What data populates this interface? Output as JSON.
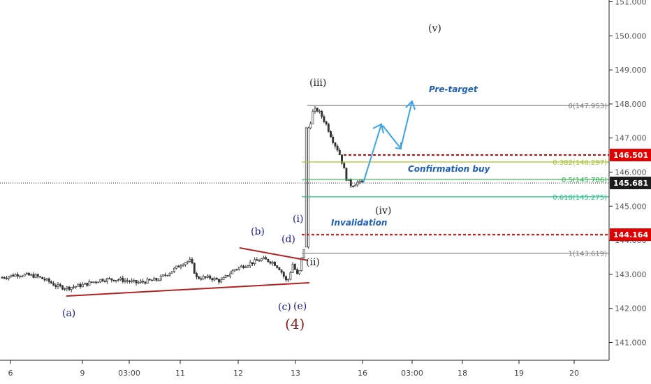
{
  "chart_data": {
    "type": "candlestick",
    "price_axis": {
      "range": [
        140.2,
        151.1
      ],
      "ticks": [
        "141.000",
        "142.000",
        "143.000",
        "144.000",
        "145.000",
        "146.000",
        "147.000",
        "148.000",
        "149.000",
        "150.000",
        "151.000"
      ]
    },
    "time_axis": {
      "labels": [
        "6",
        "9",
        "03:00",
        "11",
        "12",
        "13",
        "16",
        "03:00",
        "18",
        "19",
        "20"
      ]
    },
    "current_price": "145.681",
    "price_tags": [
      {
        "label": "146.501",
        "price": 146.501,
        "color": "#e00000"
      },
      {
        "label": "144.164",
        "price": 144.164,
        "color": "#e00000"
      }
    ],
    "fib_levels": [
      {
        "label": "0(147.953)",
        "price": 147.953,
        "color": "#7a7a7a"
      },
      {
        "label": "0.382(146.297)",
        "price": 146.297,
        "color": "#a6c227"
      },
      {
        "label": "0.5(145.786)",
        "price": 145.786,
        "color": "#2fae4a"
      },
      {
        "label": "0.618(145.275)",
        "price": 145.275,
        "color": "#1ec980"
      },
      {
        "label": "1(143.619)",
        "price": 143.619,
        "color": "#7a7a7a"
      }
    ],
    "wave_labels": [
      {
        "text": "(a)",
        "color": "#1a1a8c"
      },
      {
        "text": "(b)",
        "color": "#1a1a8c"
      },
      {
        "text": "(c)",
        "color": "#1a1a8c"
      },
      {
        "text": "(d)",
        "color": "#1a1a8c"
      },
      {
        "text": "(e)",
        "color": "#1a1a8c"
      },
      {
        "text": "(4)",
        "color": "#8b2020"
      },
      {
        "text": "(i)",
        "color": "#1a1a8c"
      },
      {
        "text": "(ii)",
        "color": "#222222"
      },
      {
        "text": "(iii)",
        "color": "#222222"
      },
      {
        "text": "(iv)",
        "color": "#222222"
      },
      {
        "text": "(v)",
        "color": "#222222"
      }
    ],
    "annotations": [
      "Pre-target",
      "Confirmation buy",
      "Invalidation"
    ],
    "grid": false,
    "colors": {
      "trendline": "#b22222",
      "arrow": "#3ba3e8",
      "candle": "#333333"
    }
  }
}
